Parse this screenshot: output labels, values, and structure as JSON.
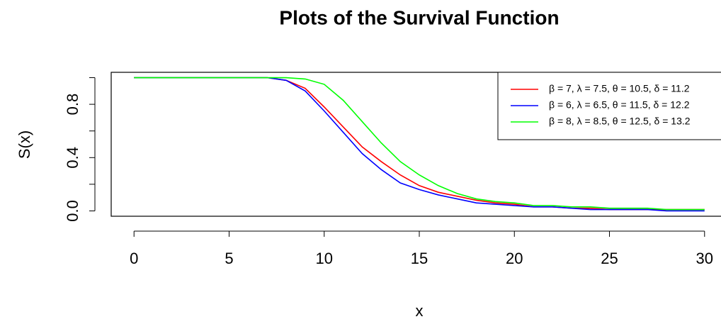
{
  "chart_data": {
    "type": "line",
    "title": "Plots of the Survival Function",
    "x_label": "x",
    "y_label": "S(x)",
    "x": [
      0,
      1,
      2,
      3,
      4,
      5,
      6,
      7,
      8,
      9,
      10,
      11,
      12,
      13,
      14,
      15,
      16,
      17,
      18,
      19,
      20,
      21,
      22,
      23,
      24,
      25,
      26,
      27,
      28,
      29,
      30
    ],
    "series": [
      {
        "name": "β = 7, λ = 7.5, θ = 10.5, δ = 11.2",
        "color": "#ff0000",
        "values": [
          1,
          1,
          1,
          1,
          1,
          1,
          1,
          1,
          0.98,
          0.92,
          0.78,
          0.63,
          0.48,
          0.37,
          0.27,
          0.19,
          0.14,
          0.11,
          0.08,
          0.06,
          0.05,
          0.03,
          0.03,
          0.02,
          0.02,
          0.01,
          0.01,
          0.01,
          0.01,
          0.01,
          0.01
        ]
      },
      {
        "name": "β = 6, λ = 6.5, θ = 11.5, δ = 12.2",
        "color": "#0000ff",
        "values": [
          1,
          1,
          1,
          1,
          1,
          1,
          1,
          1,
          0.98,
          0.9,
          0.75,
          0.59,
          0.43,
          0.31,
          0.21,
          0.16,
          0.12,
          0.09,
          0.06,
          0.05,
          0.04,
          0.03,
          0.03,
          0.02,
          0.01,
          0.01,
          0.01,
          0.01,
          0,
          0,
          0
        ]
      },
      {
        "name": "β = 8, λ = 8.5, θ = 12.5, δ = 13.2",
        "color": "#00ff00",
        "values": [
          1,
          1,
          1,
          1,
          1,
          1,
          1,
          1,
          1,
          0.99,
          0.95,
          0.83,
          0.67,
          0.51,
          0.37,
          0.27,
          0.19,
          0.13,
          0.09,
          0.07,
          0.06,
          0.04,
          0.04,
          0.03,
          0.03,
          0.02,
          0.02,
          0.02,
          0.01,
          0.01,
          0.01
        ]
      }
    ],
    "xlim": [
      -1.2,
      31.2
    ],
    "ylim": [
      -0.04,
      1.04
    ],
    "xticks": [
      0,
      5,
      10,
      15,
      20,
      25,
      30
    ],
    "yticks": [
      {
        "value": 0,
        "label": "0.0"
      },
      {
        "value": 0.2,
        "label": null
      },
      0.4,
      {
        "value": 0.6,
        "label": null
      },
      0.8,
      {
        "value": 1,
        "label": null
      }
    ],
    "legend": "top-right"
  }
}
